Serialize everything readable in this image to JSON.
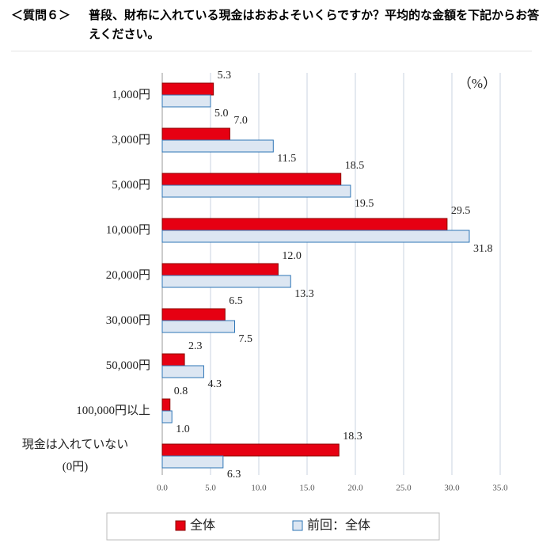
{
  "chart_data": {
    "type": "hbar",
    "question_label": "＜質問６＞",
    "title": "普段、財布に入れている現金はおおよそいくらですか？平均的な金額を下記からお答えください。",
    "unit_label": "（%）",
    "categories": [
      "1,000円",
      "3,000円",
      "5,000円",
      "10,000円",
      "20,000円",
      "30,000円",
      "50,000円",
      "100,000円以上",
      "現金は入れていない\n(0円)"
    ],
    "series": [
      {
        "name": "全体",
        "color": "#e60012",
        "values": [
          5.3,
          7.0,
          18.5,
          29.5,
          12.0,
          6.5,
          2.3,
          0.8,
          18.3
        ],
        "value_labels": [
          "5.3",
          "7.0",
          "18.5",
          "29.5",
          "12.0",
          "6.5",
          "2.3",
          "0.8",
          "18.3"
        ]
      },
      {
        "name": "前回：全体",
        "color": "#dce6f2",
        "values": [
          5.0,
          11.5,
          19.5,
          31.8,
          13.3,
          7.5,
          4.3,
          1.0,
          6.3
        ],
        "value_labels": [
          "5.0",
          "11.5",
          "19.5",
          "31.8",
          "13.3",
          "7.5",
          "4.3",
          "1.0",
          "6.3"
        ]
      }
    ],
    "xlim": [
      0,
      35
    ],
    "xticks": [
      {
        "value": 0,
        "label": "0.0"
      },
      {
        "value": 5,
        "label": "5.0"
      },
      {
        "value": 10,
        "label": "10.0"
      },
      {
        "value": 15,
        "label": "15.0"
      },
      {
        "value": 20,
        "label": "20.0"
      },
      {
        "value": 25,
        "label": "25.0"
      },
      {
        "value": 30,
        "label": "30.0"
      },
      {
        "value": 35,
        "label": "35.0"
      }
    ],
    "grid": true
  }
}
